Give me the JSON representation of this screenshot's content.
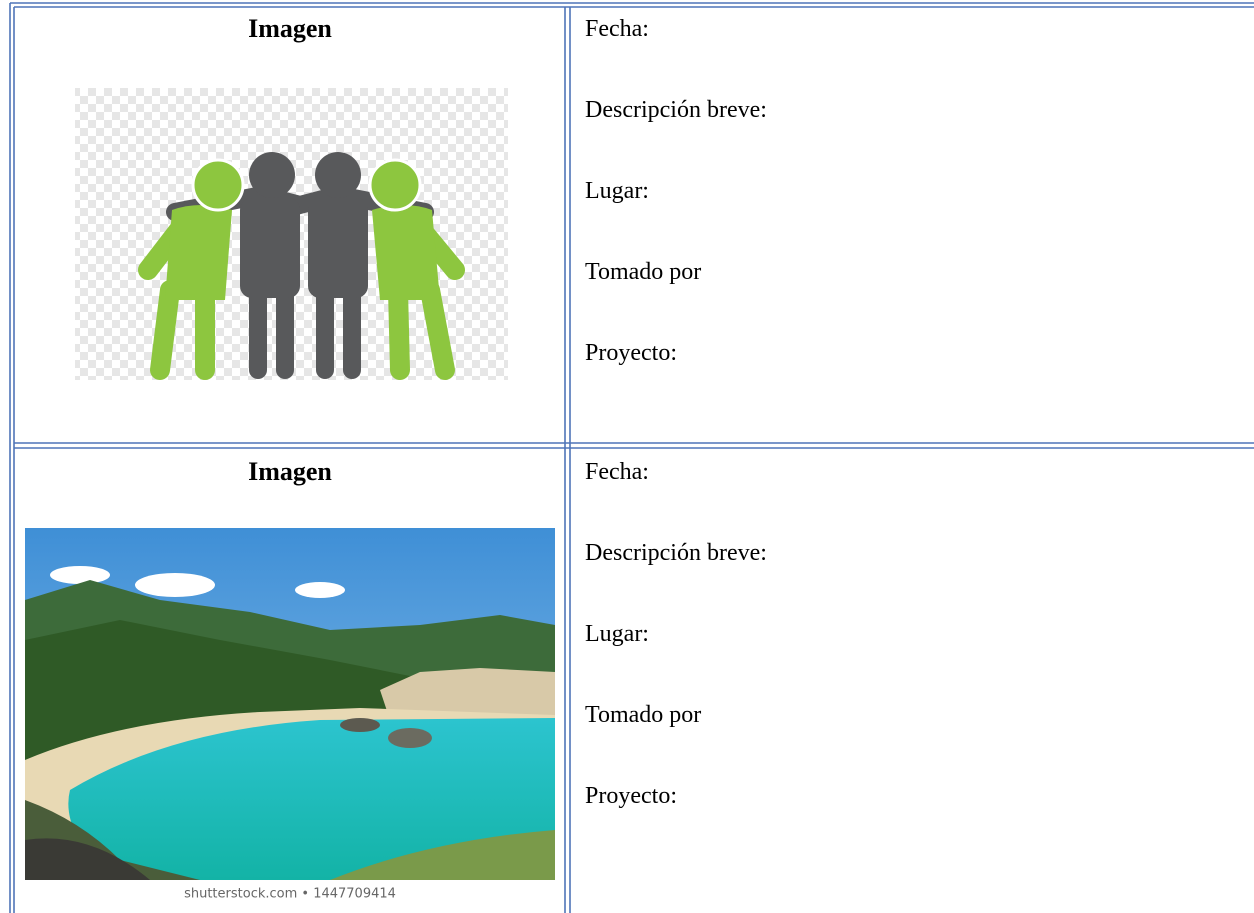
{
  "table": {
    "rows": [
      {
        "image_heading": "Imagen",
        "fields": [
          "Fecha:",
          "Descripción breve:",
          "Lugar:",
          "Tomado por",
          "Proyecto:"
        ]
      },
      {
        "image_heading": "Imagen",
        "image_caption": "shutterstock.com • 1447709414",
        "fields": [
          "Fecha:",
          "Descripción breve:",
          "Lugar:",
          "Tomado por",
          "Proyecto:"
        ]
      }
    ]
  }
}
